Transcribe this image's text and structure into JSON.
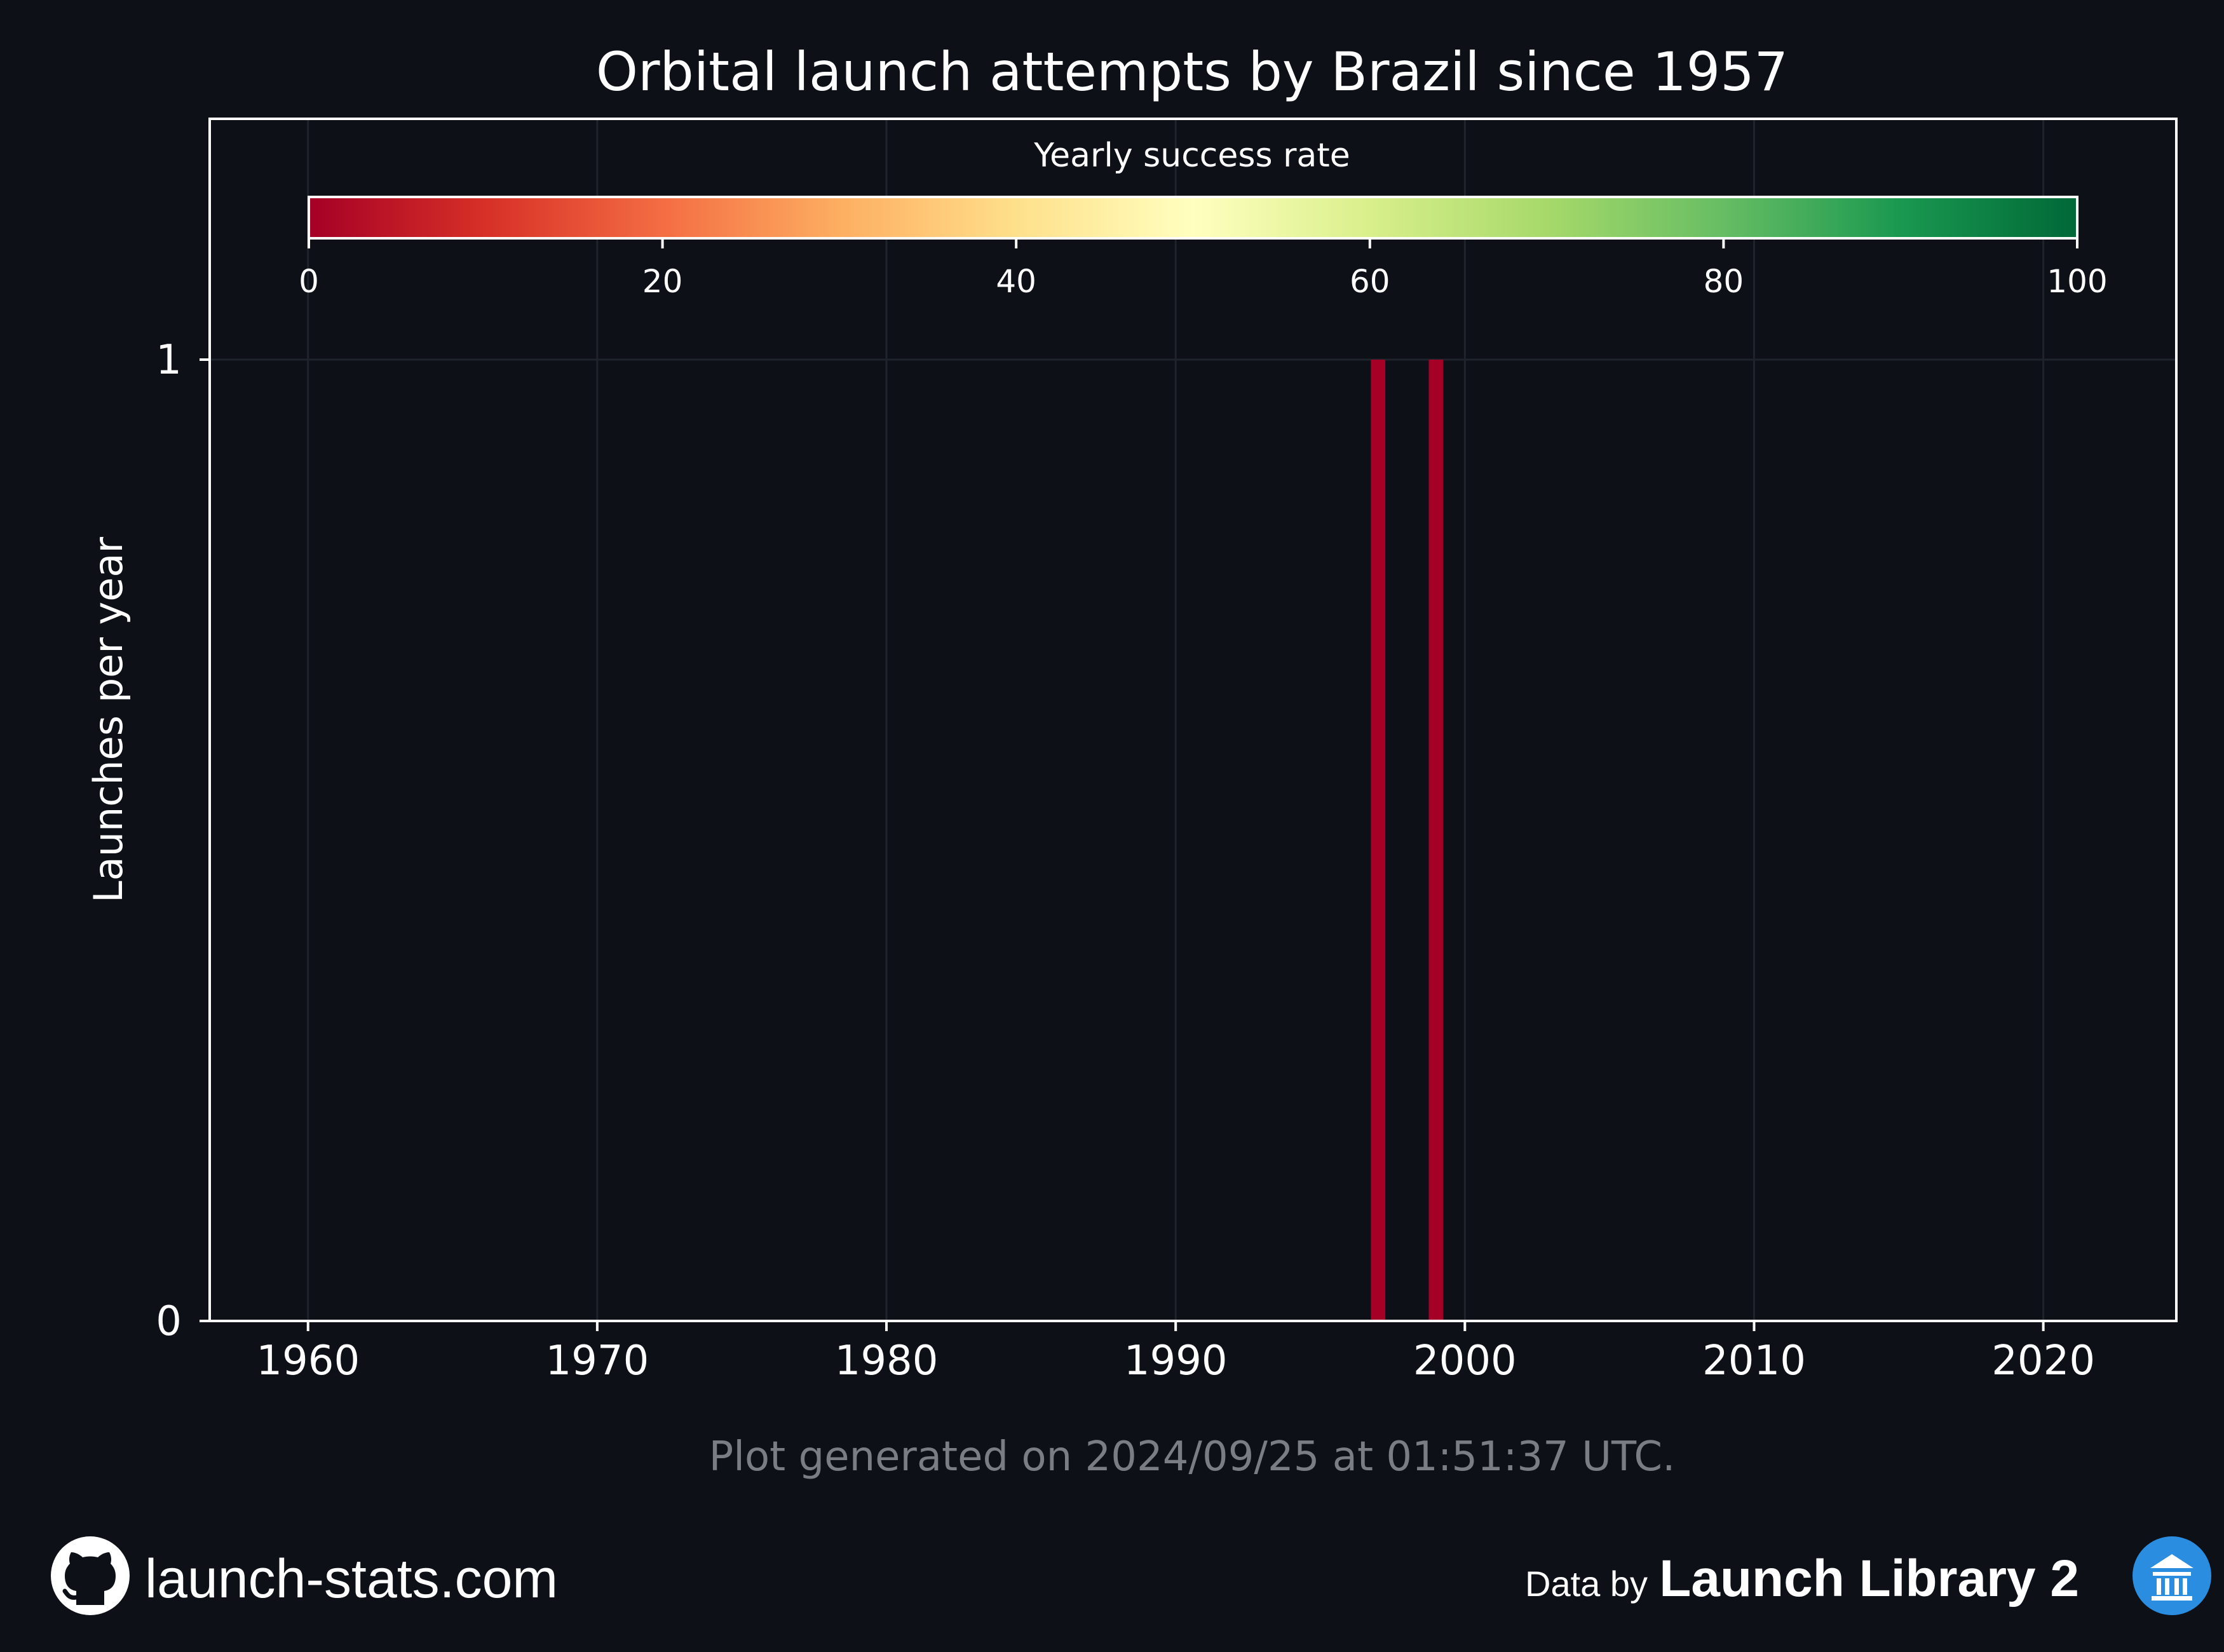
{
  "chart_data": {
    "type": "bar",
    "title": "Orbital launch attempts by Brazil since 1957",
    "xlabel": "",
    "ylabel": "Launches per year",
    "xlim": [
      1956.6,
      2024.6
    ],
    "ylim": [
      0,
      1
    ],
    "x_ticks": [
      1960,
      1970,
      1980,
      1990,
      2000,
      2010,
      2020
    ],
    "y_ticks": [
      0,
      1
    ],
    "grid": true,
    "bars": [
      {
        "year": 1997,
        "launches": 1,
        "success_rate": 0
      },
      {
        "year": 1999,
        "launches": 1,
        "success_rate": 0
      }
    ],
    "colorbar": {
      "title": "Yearly success rate",
      "range": [
        0,
        100
      ],
      "ticks": [
        0,
        20,
        40,
        60,
        80,
        100
      ],
      "colormap": [
        "#a50026",
        "#d73027",
        "#f46d43",
        "#fdae61",
        "#fee08b",
        "#ffffbf",
        "#d9ef8b",
        "#a6d96a",
        "#66bd63",
        "#1a9850",
        "#006837"
      ],
      "placement": "top"
    }
  },
  "footer": {
    "generated_note": "Plot generated on 2024/09/25 at 01:51:37 UTC.",
    "site": "launch-stats.com",
    "data_by": "Data by",
    "source": "Launch Library 2"
  },
  "icons": {
    "left": "github-icon",
    "right": "library-icon"
  },
  "colors": {
    "background": "#0d1017",
    "axes": "#ffffff",
    "grid": "#1f232b",
    "note": "#7a7d84"
  }
}
